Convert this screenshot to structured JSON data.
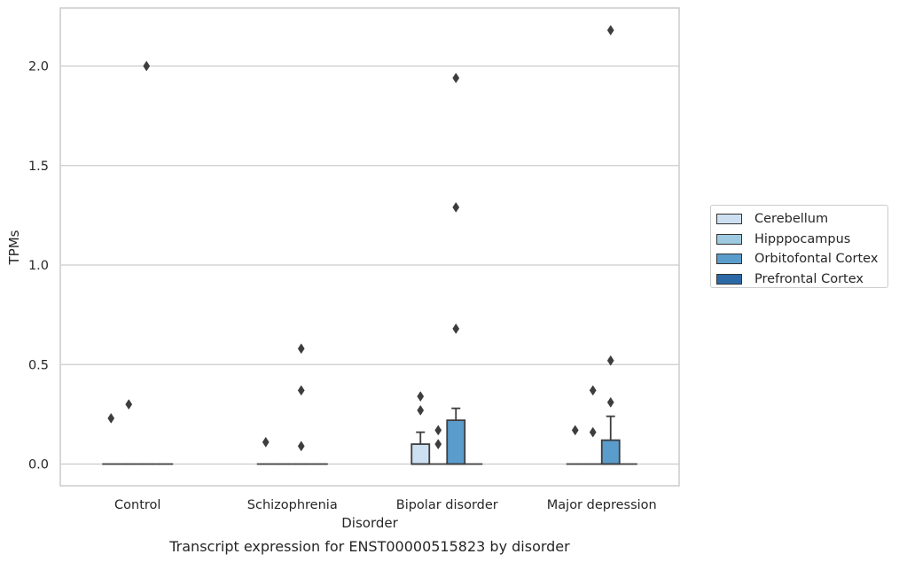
{
  "chart_data": {
    "type": "box",
    "title": "Transcript expression for ENST00000515823 by disorder",
    "xlabel": "Disorder",
    "ylabel": "TPMs",
    "categories": [
      "Control",
      "Schizophrenia",
      "Bipolar disorder",
      "Major depression"
    ],
    "ylim": [
      -0.1,
      2.3
    ],
    "yticks": [
      "0.0",
      "0.5",
      "1.0",
      "1.5",
      "2.0"
    ],
    "grid": "horizontal",
    "legend_position": "right",
    "colors": [
      "#cde0f1",
      "#9ecae1",
      "#5a9ccc",
      "#2c6aa7"
    ],
    "series": [
      {
        "name": "Cerebellum",
        "boxes": [
          {
            "q1": 0,
            "median": 0,
            "q3": 0,
            "whisker_low": 0,
            "whisker_high": 0,
            "outliers": [
              0.23
            ]
          },
          {
            "q1": 0,
            "median": 0,
            "q3": 0,
            "whisker_low": 0,
            "whisker_high": 0,
            "outliers": [
              0.11
            ]
          },
          {
            "q1": 0,
            "median": 0,
            "q3": 0.1,
            "whisker_low": 0,
            "whisker_high": 0.16,
            "outliers": [
              0.27,
              0.34
            ]
          },
          {
            "q1": 0,
            "median": 0,
            "q3": 0,
            "whisker_low": 0,
            "whisker_high": 0,
            "outliers": [
              0.17
            ]
          }
        ]
      },
      {
        "name": "Hipppocampus",
        "boxes": [
          {
            "q1": 0,
            "median": 0,
            "q3": 0,
            "whisker_low": 0,
            "whisker_high": 0,
            "outliers": [
              0.3
            ]
          },
          {
            "q1": 0,
            "median": 0,
            "q3": 0,
            "whisker_low": 0,
            "whisker_high": 0,
            "outliers": []
          },
          {
            "q1": 0,
            "median": 0,
            "q3": 0,
            "whisker_low": 0,
            "whisker_high": 0,
            "outliers": [
              0.1,
              0.17
            ]
          },
          {
            "q1": 0,
            "median": 0,
            "q3": 0,
            "whisker_low": 0,
            "whisker_high": 0,
            "outliers": [
              0.16,
              0.37
            ]
          }
        ]
      },
      {
        "name": "Orbitofontal Cortex",
        "boxes": [
          {
            "q1": 0,
            "median": 0,
            "q3": 0,
            "whisker_low": 0,
            "whisker_high": 0,
            "outliers": [
              2.0
            ]
          },
          {
            "q1": 0,
            "median": 0,
            "q3": 0,
            "whisker_low": 0,
            "whisker_high": 0,
            "outliers": [
              0.09,
              0.37,
              0.58
            ]
          },
          {
            "q1": 0,
            "median": 0,
            "q3": 0.22,
            "whisker_low": 0,
            "whisker_high": 0.28,
            "outliers": [
              0.68,
              1.29,
              1.94
            ]
          },
          {
            "q1": 0,
            "median": 0,
            "q3": 0.12,
            "whisker_low": 0,
            "whisker_high": 0.24,
            "outliers": [
              0.31,
              0.52,
              2.18
            ]
          }
        ]
      },
      {
        "name": "Prefrontal Cortex",
        "boxes": [
          {
            "q1": 0,
            "median": 0,
            "q3": 0,
            "whisker_low": 0,
            "whisker_high": 0,
            "outliers": []
          },
          {
            "q1": 0,
            "median": 0,
            "q3": 0,
            "whisker_low": 0,
            "whisker_high": 0,
            "outliers": []
          },
          {
            "q1": 0,
            "median": 0,
            "q3": 0,
            "whisker_low": 0,
            "whisker_high": 0,
            "outliers": []
          },
          {
            "q1": 0,
            "median": 0,
            "q3": 0,
            "whisker_low": 0,
            "whisker_high": 0,
            "outliers": []
          }
        ]
      }
    ]
  }
}
